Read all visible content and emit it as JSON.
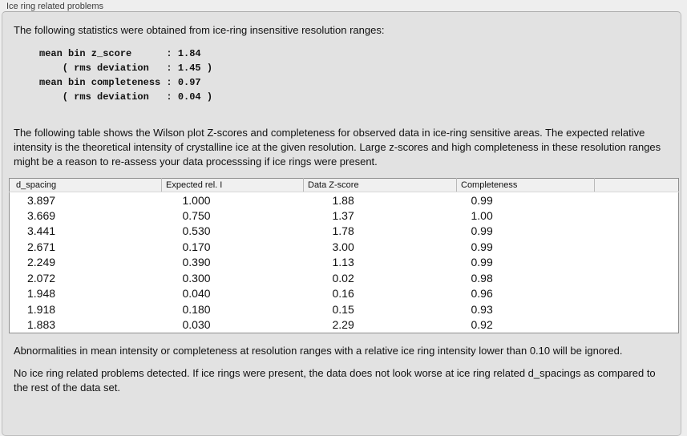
{
  "panel": {
    "title": "Ice ring related problems",
    "intro_text": "The following statistics were obtained from ice-ring insensitive resolution ranges:",
    "stats_block": "mean bin z_score      : 1.84\n    ( rms deviation   : 1.45 )\nmean bin completeness : 0.97\n    ( rms deviation   : 0.04 )",
    "stats": {
      "mean_bin_z_score": "1.84",
      "z_score_rms_deviation": "1.45",
      "mean_bin_completeness": "0.97",
      "completeness_rms_deviation": "0.04"
    },
    "table_description": "The following table shows the Wilson plot Z-scores and completeness for observed data in ice-ring sensitive areas. The expected relative intensity is the theoretical intensity of crystalline ice at the given resolution. Large z-scores and high completeness in these resolution ranges might be a reason to re-assess your data processsing if ice rings were present.",
    "table": {
      "columns": [
        "d_spacing",
        "Expected rel. I",
        "Data Z-score",
        "Completeness",
        ""
      ],
      "rows": [
        [
          "3.897",
          "1.000",
          "1.88",
          "0.99"
        ],
        [
          "3.669",
          "0.750",
          "1.37",
          "1.00"
        ],
        [
          "3.441",
          "0.530",
          "1.78",
          "0.99"
        ],
        [
          "2.671",
          "0.170",
          "3.00",
          "0.99"
        ],
        [
          "2.249",
          "0.390",
          "1.13",
          "0.99"
        ],
        [
          "2.072",
          "0.300",
          "0.02",
          "0.98"
        ],
        [
          "1.948",
          "0.040",
          "0.16",
          "0.96"
        ],
        [
          "1.918",
          "0.180",
          "0.15",
          "0.93"
        ],
        [
          "1.883",
          "0.030",
          "2.29",
          "0.92"
        ]
      ]
    },
    "ignore_note": "Abnormalities in mean intensity or completeness at resolution ranges with a relative ice ring intensity lower than 0.10 will be ignored.",
    "conclusion": "No ice ring related problems detected. If ice rings were present, the data does not look worse at ice ring related d_spacings as compared to the rest of the data set."
  },
  "colors": {
    "outer_background": "#eeeeee",
    "panel_background": "#e2e2e2",
    "panel_border": "#bdbdbd",
    "table_border": "#8f8f8f",
    "table_header_background": "#f0f0f0"
  }
}
